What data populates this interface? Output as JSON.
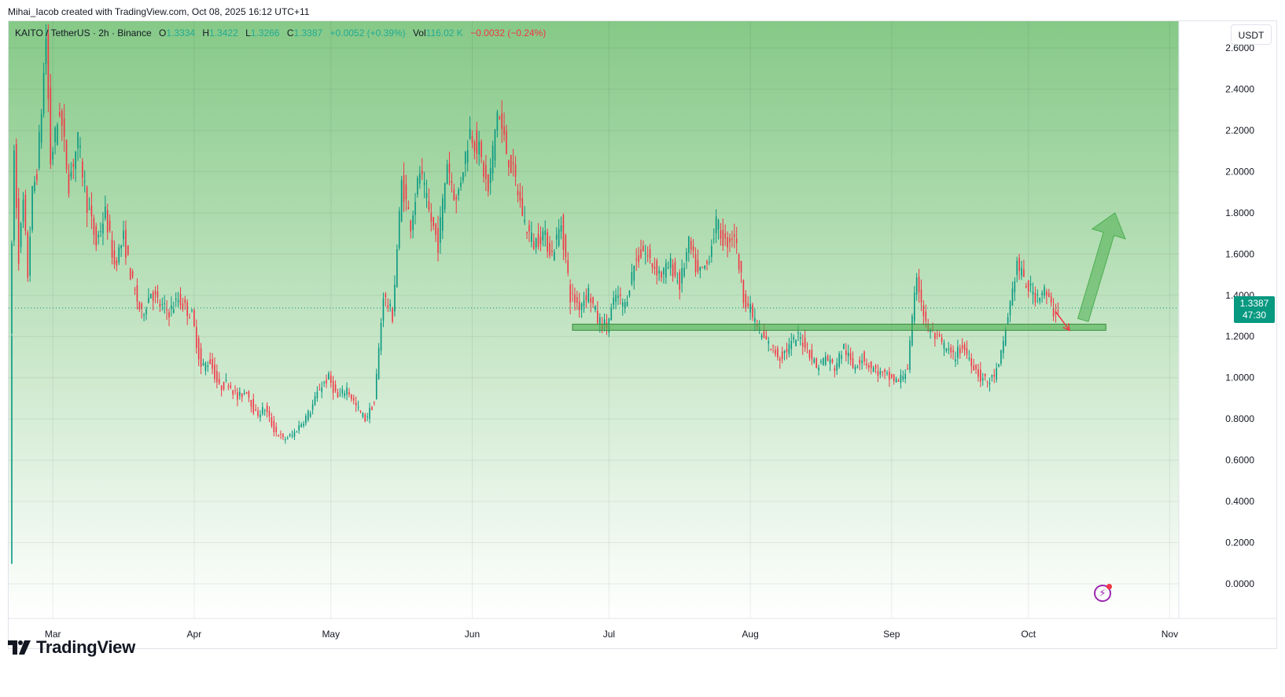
{
  "header": {
    "created_by": "Mihai_Iacob created with TradingView.com, Oct 08, 2025 16:12 UTC+11"
  },
  "legend": {
    "symbol": "KAITO / TetherUS · 2h · Binance",
    "open_label": "O",
    "open": "1.3334",
    "high_label": "H",
    "high": "1.3422",
    "low_label": "L",
    "low": "1.3266",
    "close_label": "C",
    "close": "1.3387",
    "change": "+0.0052 (+0.39%)",
    "vol_label": "Vol",
    "vol": "116.02 K",
    "vol_change": "−0.0032 (−0.24%)"
  },
  "currency_button": "USDT",
  "price_tag": {
    "price": "1.3387",
    "countdown": "47:30"
  },
  "brand": {
    "name": "TradingView",
    "logo_icon": "tradingview-logo-icon"
  },
  "colors": {
    "up": "#089981",
    "down": "#f23645",
    "zone": "#4caf50",
    "arrow_up": "#4caf50",
    "arrow_down": "#f23645",
    "bg_top": "#86c987",
    "bg_bottom": "#ffffff"
  },
  "chart_data": {
    "type": "candlestick",
    "symbol": "KAITO/USDT",
    "interval": "2h",
    "exchange": "Binance",
    "y_ticks": [
      "0.0000",
      "0.2000",
      "0.4000",
      "0.6000",
      "0.8000",
      "1.0000",
      "1.2000",
      "1.4000",
      "1.6000",
      "1.8000",
      "2.0000",
      "2.2000",
      "2.4000",
      "2.6000"
    ],
    "ylim": [
      0.0,
      2.6
    ],
    "x_ticks": [
      {
        "label": "Mar",
        "date": "2025-03-01"
      },
      {
        "label": "Apr",
        "date": "2025-04-01"
      },
      {
        "label": "May",
        "date": "2025-05-01"
      },
      {
        "label": "Jun",
        "date": "2025-06-01"
      },
      {
        "label": "Jul",
        "date": "2025-07-01"
      },
      {
        "label": "Aug",
        "date": "2025-08-01"
      },
      {
        "label": "Sep",
        "date": "2025-09-01"
      },
      {
        "label": "Oct",
        "date": "2025-10-01"
      },
      {
        "label": "Nov",
        "date": "2025-11-01"
      }
    ],
    "xlim": [
      "2025-02-20",
      "2025-11-03"
    ],
    "current_price": 1.3387,
    "grid": true,
    "price_path": [
      [
        "2025-02-20",
        0.1
      ],
      [
        "2025-02-20",
        1.2
      ],
      [
        "2025-02-21",
        2.1
      ],
      [
        "2025-02-22",
        1.6
      ],
      [
        "2025-02-23",
        1.85
      ],
      [
        "2025-02-24",
        1.5
      ],
      [
        "2025-02-25",
        1.9
      ],
      [
        "2025-02-26",
        2.0
      ],
      [
        "2025-02-27",
        2.3
      ],
      [
        "2025-02-28",
        2.65
      ],
      [
        "2025-03-01",
        2.05
      ],
      [
        "2025-03-03",
        2.3
      ],
      [
        "2025-03-05",
        1.95
      ],
      [
        "2025-03-07",
        2.15
      ],
      [
        "2025-03-09",
        1.85
      ],
      [
        "2025-03-11",
        1.65
      ],
      [
        "2025-03-13",
        1.8
      ],
      [
        "2025-03-15",
        1.55
      ],
      [
        "2025-03-17",
        1.68
      ],
      [
        "2025-03-19",
        1.45
      ],
      [
        "2025-03-21",
        1.3
      ],
      [
        "2025-03-23",
        1.42
      ],
      [
        "2025-03-25",
        1.35
      ],
      [
        "2025-03-27",
        1.32
      ],
      [
        "2025-03-29",
        1.38
      ],
      [
        "2025-04-01",
        1.3
      ],
      [
        "2025-04-03",
        1.05
      ],
      [
        "2025-04-05",
        1.08
      ],
      [
        "2025-04-07",
        0.95
      ],
      [
        "2025-04-09",
        0.98
      ],
      [
        "2025-04-11",
        0.9
      ],
      [
        "2025-04-13",
        0.94
      ],
      [
        "2025-04-15",
        0.82
      ],
      [
        "2025-04-17",
        0.85
      ],
      [
        "2025-04-19",
        0.75
      ],
      [
        "2025-04-21",
        0.7
      ],
      [
        "2025-04-23",
        0.72
      ],
      [
        "2025-04-25",
        0.78
      ],
      [
        "2025-04-27",
        0.84
      ],
      [
        "2025-04-29",
        0.95
      ],
      [
        "2025-05-01",
        1.0
      ],
      [
        "2025-05-03",
        0.9
      ],
      [
        "2025-05-05",
        0.95
      ],
      [
        "2025-05-07",
        0.86
      ],
      [
        "2025-05-09",
        0.8
      ],
      [
        "2025-05-11",
        0.88
      ],
      [
        "2025-05-13",
        1.4
      ],
      [
        "2025-05-15",
        1.3
      ],
      [
        "2025-05-17",
        1.95
      ],
      [
        "2025-05-19",
        1.75
      ],
      [
        "2025-05-21",
        2.0
      ],
      [
        "2025-05-23",
        1.8
      ],
      [
        "2025-05-25",
        1.65
      ],
      [
        "2025-05-27",
        2.05
      ],
      [
        "2025-05-29",
        1.85
      ],
      [
        "2025-06-01",
        2.2
      ],
      [
        "2025-06-03",
        2.1
      ],
      [
        "2025-06-05",
        1.9
      ],
      [
        "2025-06-07",
        2.3
      ],
      [
        "2025-06-09",
        2.1
      ],
      [
        "2025-06-11",
        1.95
      ],
      [
        "2025-06-13",
        1.75
      ],
      [
        "2025-06-15",
        1.65
      ],
      [
        "2025-06-17",
        1.7
      ],
      [
        "2025-06-19",
        1.6
      ],
      [
        "2025-06-21",
        1.75
      ],
      [
        "2025-06-23",
        1.4
      ],
      [
        "2025-06-25",
        1.35
      ],
      [
        "2025-06-27",
        1.42
      ],
      [
        "2025-06-29",
        1.28
      ],
      [
        "2025-07-01",
        1.25
      ],
      [
        "2025-07-03",
        1.4
      ],
      [
        "2025-07-05",
        1.35
      ],
      [
        "2025-07-07",
        1.55
      ],
      [
        "2025-07-09",
        1.62
      ],
      [
        "2025-07-11",
        1.55
      ],
      [
        "2025-07-13",
        1.5
      ],
      [
        "2025-07-15",
        1.55
      ],
      [
        "2025-07-17",
        1.45
      ],
      [
        "2025-07-19",
        1.65
      ],
      [
        "2025-07-21",
        1.5
      ],
      [
        "2025-07-23",
        1.55
      ],
      [
        "2025-07-25",
        1.75
      ],
      [
        "2025-07-27",
        1.65
      ],
      [
        "2025-07-29",
        1.7
      ],
      [
        "2025-07-31",
        1.4
      ],
      [
        "2025-08-02",
        1.3
      ],
      [
        "2025-08-04",
        1.2
      ],
      [
        "2025-08-06",
        1.15
      ],
      [
        "2025-08-08",
        1.1
      ],
      [
        "2025-08-10",
        1.15
      ],
      [
        "2025-08-12",
        1.2
      ],
      [
        "2025-08-14",
        1.15
      ],
      [
        "2025-08-16",
        1.05
      ],
      [
        "2025-08-18",
        1.1
      ],
      [
        "2025-08-20",
        1.05
      ],
      [
        "2025-08-22",
        1.15
      ],
      [
        "2025-08-24",
        1.05
      ],
      [
        "2025-08-26",
        1.1
      ],
      [
        "2025-08-28",
        1.05
      ],
      [
        "2025-08-30",
        1.02
      ],
      [
        "2025-09-01",
        1.0
      ],
      [
        "2025-09-03",
        0.98
      ],
      [
        "2025-09-05",
        1.05
      ],
      [
        "2025-09-07",
        1.5
      ],
      [
        "2025-09-09",
        1.25
      ],
      [
        "2025-09-11",
        1.2
      ],
      [
        "2025-09-13",
        1.15
      ],
      [
        "2025-09-15",
        1.1
      ],
      [
        "2025-09-17",
        1.15
      ],
      [
        "2025-09-19",
        1.08
      ],
      [
        "2025-09-21",
        1.0
      ],
      [
        "2025-09-23",
        0.98
      ],
      [
        "2025-09-25",
        1.05
      ],
      [
        "2025-09-27",
        1.3
      ],
      [
        "2025-09-29",
        1.55
      ],
      [
        "2025-10-01",
        1.45
      ],
      [
        "2025-10-03",
        1.4
      ],
      [
        "2025-10-05",
        1.42
      ],
      [
        "2025-10-07",
        1.32
      ],
      [
        "2025-10-08",
        1.3387
      ]
    ],
    "annotations": [
      {
        "type": "zone",
        "name": "support-zone",
        "from": "2025-06-23",
        "to": "2025-10-18",
        "low": 1.23,
        "high": 1.26
      },
      {
        "type": "arrow",
        "name": "down-arrow",
        "from": [
          "2025-10-07",
          1.32
        ],
        "to": [
          "2025-10-10",
          1.23
        ],
        "color": "#f23645"
      },
      {
        "type": "arrow",
        "name": "up-arrow",
        "from": [
          "2025-10-13",
          1.28
        ],
        "to": [
          "2025-10-20",
          1.8
        ],
        "color": "#4caf50"
      }
    ]
  }
}
